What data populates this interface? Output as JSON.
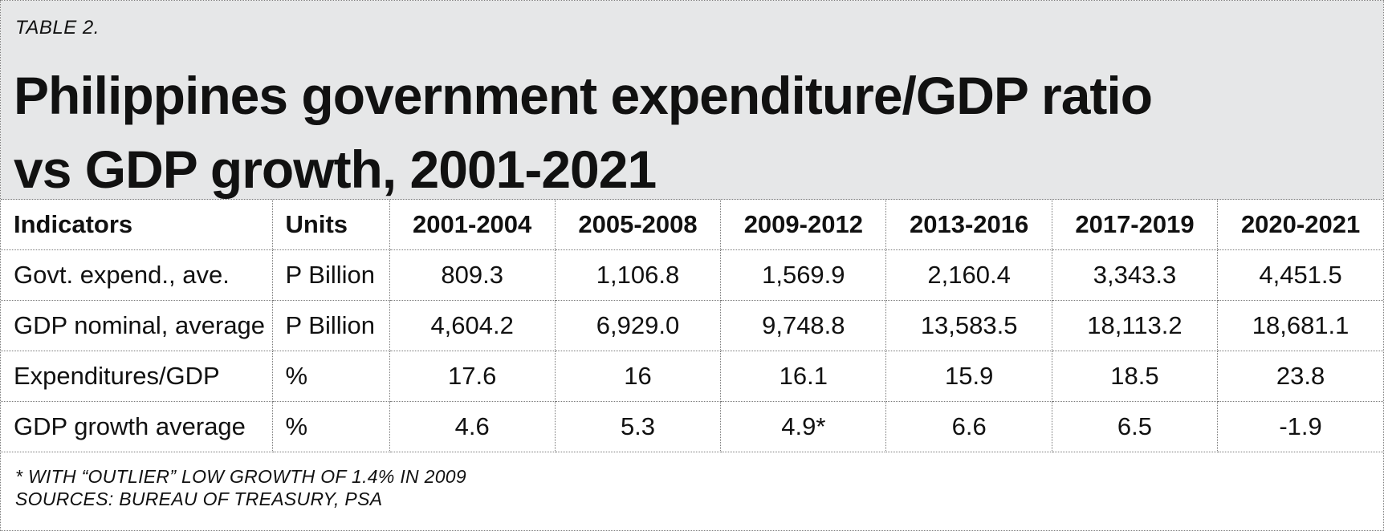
{
  "chart_data": {
    "type": "table",
    "label": "TABLE 2.",
    "title": "Philippines government expenditure/GDP ratio vs GDP growth, 2001-2021",
    "columns": [
      "Indicators",
      "Units",
      "2001-2004",
      "2005-2008",
      "2009-2012",
      "2013-2016",
      "2017-2019",
      "2020-2021"
    ],
    "rows": [
      {
        "indicator": "Govt. expend., ave.",
        "unit": "P Billion",
        "values": [
          "809.3",
          "1,106.8",
          "1,569.9",
          "2,160.4",
          "3,343.3",
          "4,451.5"
        ]
      },
      {
        "indicator": "GDP nominal, average",
        "unit": "P Billion",
        "values": [
          "4,604.2",
          "6,929.0",
          "9,748.8",
          "13,583.5",
          "18,113.2",
          "18,681.1"
        ]
      },
      {
        "indicator": "Expenditures/GDP",
        "unit": "%",
        "values": [
          "17.6",
          "16",
          "16.1",
          "15.9",
          "18.5",
          "23.8"
        ]
      },
      {
        "indicator": "GDP growth average",
        "unit": "%",
        "values": [
          "4.6",
          "5.3",
          "4.9*",
          "6.6",
          "6.5",
          "-1.9"
        ]
      }
    ],
    "footnote": "* WITH “OUTLIER” LOW GROWTH OF 1.4% IN 2009",
    "source": "SOURCES: BUREAU OF TREASURY, PSA"
  },
  "colors": {
    "header_background": "#e6e7e8",
    "text": "#111111",
    "grid": "#7a7a7a"
  }
}
